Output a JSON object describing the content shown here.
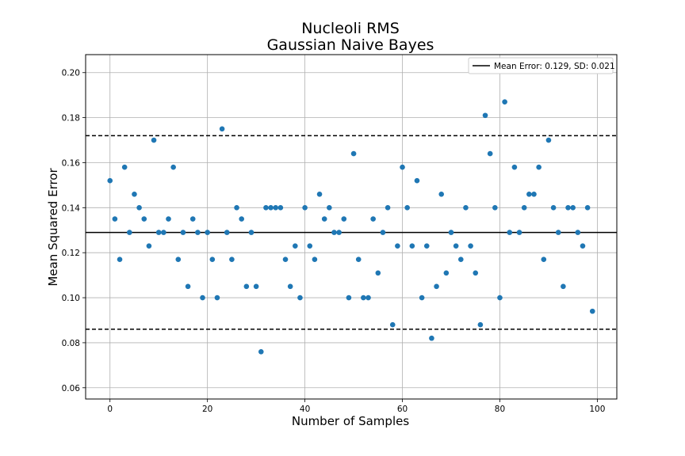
{
  "chart_data": {
    "type": "scatter",
    "title_line1": "Nucleoli RMS",
    "title_line2": "Gaussian Naive Bayes",
    "xlabel": "Number of Samples",
    "ylabel": "Mean Squared Error",
    "xlim": [
      -5,
      104
    ],
    "ylim": [
      0.055,
      0.208
    ],
    "xticks": [
      0,
      20,
      40,
      60,
      80,
      100
    ],
    "yticks": [
      0.06,
      0.08,
      0.1,
      0.12,
      0.14,
      0.16,
      0.18,
      0.2
    ],
    "xtick_labels": [
      "0",
      "20",
      "40",
      "60",
      "80",
      "100"
    ],
    "ytick_labels": [
      "0.06",
      "0.08",
      "0.10",
      "0.12",
      "0.14",
      "0.16",
      "0.18",
      "0.20"
    ],
    "grid": true,
    "mean": 0.129,
    "sd": 0.021,
    "upper_line": 0.172,
    "lower_line": 0.086,
    "legend": {
      "label": "Mean Error: 0.129, SD: 0.021",
      "placement": "top-right"
    },
    "point_color": "#1f77b4",
    "x": [
      0,
      1,
      2,
      3,
      4,
      5,
      6,
      7,
      8,
      9,
      10,
      11,
      12,
      13,
      14,
      15,
      16,
      17,
      18,
      19,
      20,
      21,
      22,
      23,
      24,
      25,
      26,
      27,
      28,
      29,
      30,
      31,
      32,
      33,
      34,
      35,
      36,
      37,
      38,
      39,
      40,
      41,
      42,
      43,
      44,
      45,
      46,
      47,
      48,
      49,
      50,
      51,
      52,
      53,
      54,
      55,
      56,
      57,
      58,
      59,
      60,
      61,
      62,
      63,
      64,
      65,
      66,
      67,
      68,
      69,
      70,
      71,
      72,
      73,
      74,
      75,
      76,
      77,
      78,
      79,
      80,
      81,
      82,
      83,
      84,
      85,
      86,
      87,
      88,
      89,
      90,
      91,
      92,
      93,
      94,
      95,
      96,
      97,
      98,
      99
    ],
    "y": [
      0.152,
      0.135,
      0.117,
      0.158,
      0.129,
      0.146,
      0.14,
      0.135,
      0.123,
      0.17,
      0.129,
      0.129,
      0.135,
      0.158,
      0.117,
      0.129,
      0.105,
      0.135,
      0.129,
      0.1,
      0.129,
      0.117,
      0.1,
      0.175,
      0.129,
      0.117,
      0.14,
      0.135,
      0.105,
      0.129,
      0.105,
      0.076,
      0.14,
      0.14,
      0.14,
      0.14,
      0.117,
      0.105,
      0.123,
      0.1,
      0.14,
      0.123,
      0.117,
      0.146,
      0.135,
      0.14,
      0.129,
      0.129,
      0.135,
      0.1,
      0.164,
      0.117,
      0.1,
      0.1,
      0.135,
      0.111,
      0.129,
      0.14,
      0.088,
      0.123,
      0.158,
      0.14,
      0.123,
      0.152,
      0.1,
      0.123,
      0.082,
      0.105,
      0.146,
      0.111,
      0.129,
      0.123,
      0.117,
      0.14,
      0.123,
      0.111,
      0.088,
      0.181,
      0.164,
      0.14,
      0.1,
      0.187,
      0.129,
      0.158,
      0.129,
      0.14,
      0.146,
      0.146,
      0.158,
      0.117,
      0.17,
      0.14,
      0.129,
      0.105,
      0.14,
      0.14,
      0.129,
      0.123,
      0.14,
      0.094
    ]
  }
}
